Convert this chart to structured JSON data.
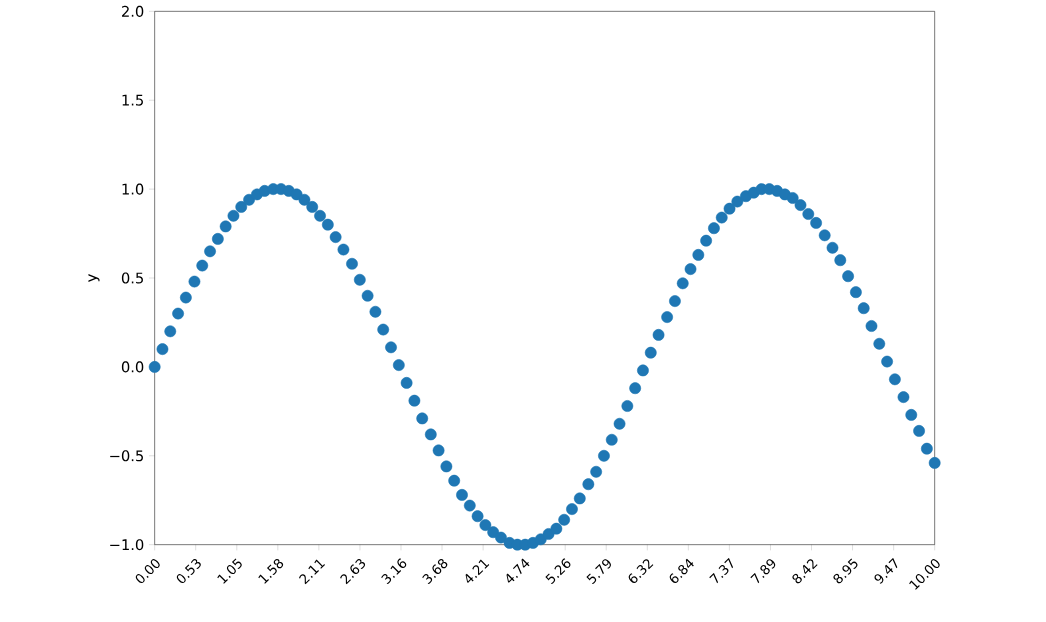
{
  "chart_data": {
    "type": "scatter",
    "ylabel": "y",
    "color": "#1f77b4",
    "marker": "circle",
    "x": [
      0,
      0.1,
      0.2,
      0.3,
      0.4,
      0.51,
      0.61,
      0.71,
      0.81,
      0.91,
      1.01,
      1.11,
      1.21,
      1.31,
      1.41,
      1.52,
      1.62,
      1.72,
      1.82,
      1.92,
      2.02,
      2.12,
      2.22,
      2.32,
      2.42,
      2.53,
      2.63,
      2.73,
      2.83,
      2.93,
      3.03,
      3.13,
      3.23,
      3.33,
      3.43,
      3.54,
      3.64,
      3.74,
      3.84,
      3.94,
      4.04,
      4.14,
      4.24,
      4.34,
      4.44,
      4.55,
      4.65,
      4.75,
      4.85,
      4.95,
      5.05,
      5.15,
      5.25,
      5.35,
      5.45,
      5.56,
      5.66,
      5.76,
      5.86,
      5.96,
      6.06,
      6.16,
      6.26,
      6.36,
      6.46,
      6.57,
      6.67,
      6.77,
      6.87,
      6.97,
      7.07,
      7.17,
      7.27,
      7.37,
      7.47,
      7.58,
      7.68,
      7.78,
      7.88,
      7.98,
      8.08,
      8.18,
      8.28,
      8.38,
      8.48,
      8.59,
      8.69,
      8.79,
      8.89,
      8.99,
      9.09,
      9.19,
      9.29,
      9.39,
      9.49,
      9.6,
      9.7,
      9.8,
      9.9,
      10.0
    ],
    "values": [
      0,
      0.1,
      0.2,
      0.3,
      0.39,
      0.48,
      0.57,
      0.65,
      0.72,
      0.79,
      0.85,
      0.9,
      0.94,
      0.97,
      0.99,
      1.0,
      1.0,
      0.99,
      0.97,
      0.94,
      0.9,
      0.85,
      0.8,
      0.73,
      0.66,
      0.58,
      0.49,
      0.4,
      0.31,
      0.21,
      0.11,
      0.01,
      -0.09,
      -0.19,
      -0.29,
      -0.38,
      -0.47,
      -0.56,
      -0.64,
      -0.72,
      -0.78,
      -0.84,
      -0.89,
      -0.93,
      -0.96,
      -0.99,
      -1.0,
      -1.0,
      -0.99,
      -0.97,
      -0.94,
      -0.91,
      -0.86,
      -0.8,
      -0.74,
      -0.66,
      -0.59,
      -0.5,
      -0.41,
      -0.32,
      -0.22,
      -0.12,
      -0.02,
      0.08,
      0.18,
      0.28,
      0.37,
      0.47,
      0.55,
      0.63,
      0.71,
      0.78,
      0.84,
      0.89,
      0.93,
      0.96,
      0.98,
      1.0,
      1.0,
      0.99,
      0.97,
      0.95,
      0.91,
      0.86,
      0.81,
      0.74,
      0.67,
      0.6,
      0.51,
      0.42,
      0.33,
      0.23,
      0.13,
      0.03,
      -0.07,
      -0.17,
      -0.27,
      -0.36,
      -0.46,
      -0.54
    ],
    "xlim": [
      0,
      10
    ],
    "ylim": [
      -1,
      2
    ],
    "xticks": [
      {
        "value": 0,
        "label": "0.00"
      },
      {
        "value": 0.526,
        "label": "0.53"
      },
      {
        "value": 1.053,
        "label": "1.05"
      },
      {
        "value": 1.579,
        "label": "1.58"
      },
      {
        "value": 2.105,
        "label": "2.11"
      },
      {
        "value": 2.632,
        "label": "2.63"
      },
      {
        "value": 3.158,
        "label": "3.16"
      },
      {
        "value": 3.684,
        "label": "3.68"
      },
      {
        "value": 4.211,
        "label": "4.21"
      },
      {
        "value": 4.737,
        "label": "4.74"
      },
      {
        "value": 5.263,
        "label": "5.26"
      },
      {
        "value": 5.789,
        "label": "5.79"
      },
      {
        "value": 6.316,
        "label": "6.32"
      },
      {
        "value": 6.842,
        "label": "6.84"
      },
      {
        "value": 7.368,
        "label": "7.37"
      },
      {
        "value": 7.895,
        "label": "7.89"
      },
      {
        "value": 8.421,
        "label": "8.42"
      },
      {
        "value": 8.947,
        "label": "8.95"
      },
      {
        "value": 9.474,
        "label": "9.47"
      },
      {
        "value": 10,
        "label": "10.00"
      }
    ],
    "yticks": [
      {
        "value": -1,
        "label": "−1.0"
      },
      {
        "value": -0.5,
        "label": "−0.5"
      },
      {
        "value": 0,
        "label": "0.0"
      },
      {
        "value": 0.5,
        "label": "0.5"
      },
      {
        "value": 1,
        "label": "1.0"
      },
      {
        "value": 1.5,
        "label": "1.5"
      },
      {
        "value": 2,
        "label": "2.0"
      }
    ]
  }
}
